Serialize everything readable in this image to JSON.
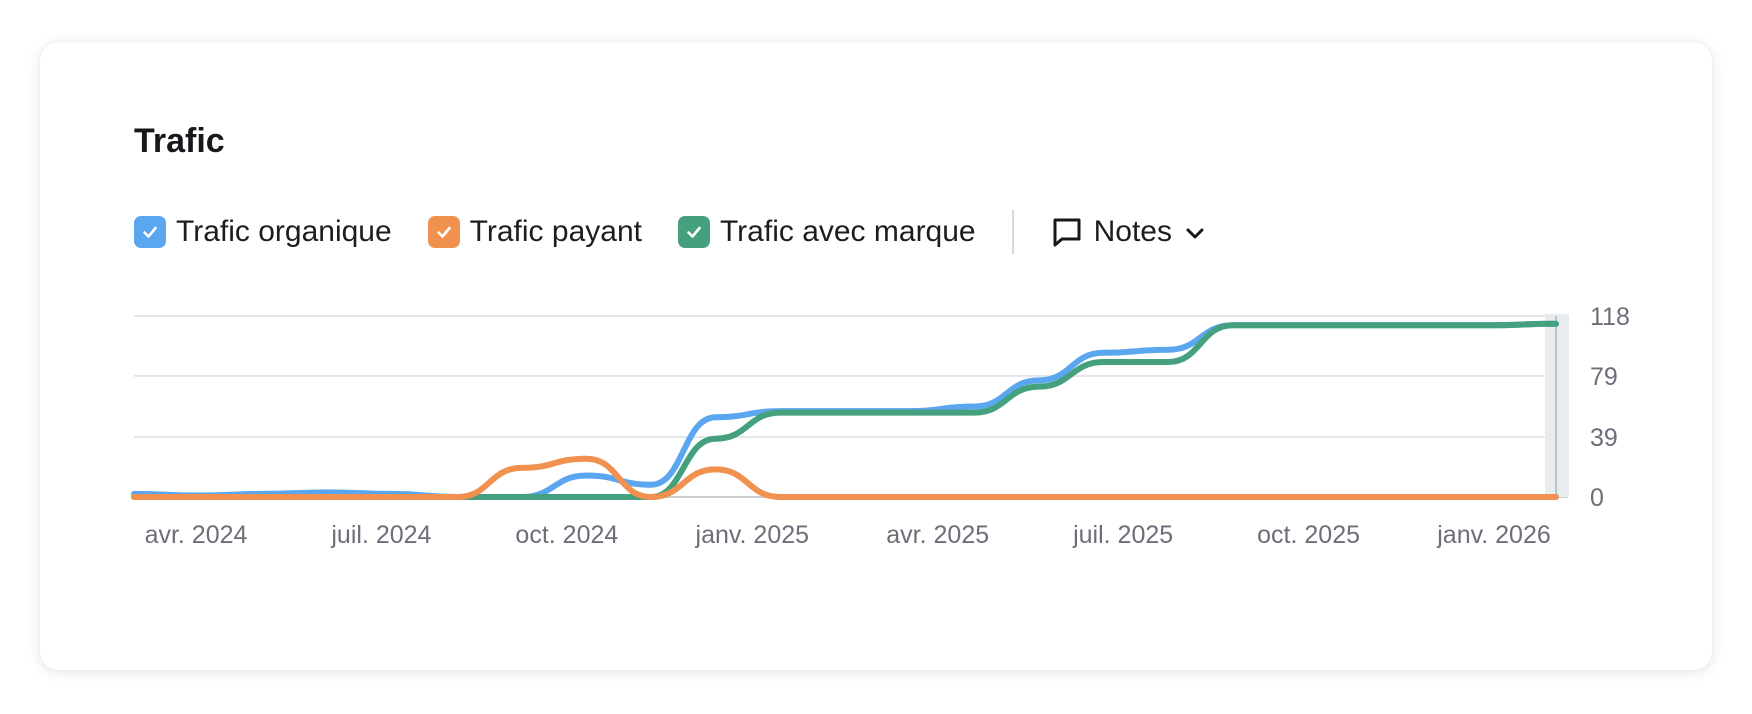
{
  "card": {
    "title": "Trafic"
  },
  "legend": {
    "items": [
      {
        "label": "Trafic organique",
        "color": "#5aa7f0",
        "checked": true
      },
      {
        "label": "Trafic payant",
        "color": "#f0914f",
        "checked": true
      },
      {
        "label": "Trafic avec marque",
        "color": "#45a07d",
        "checked": true
      }
    ],
    "notes_label": "Notes"
  },
  "chart_data": {
    "type": "line",
    "title": "Trafic",
    "x_tick_labels": [
      "avr. 2024",
      "juil. 2024",
      "oct. 2024",
      "janv. 2025",
      "avr. 2025",
      "juil. 2025",
      "oct. 2025",
      "janv. 2026"
    ],
    "y_ticks": [
      0,
      39,
      79,
      118
    ],
    "y_axis_position": "right",
    "ylim": [
      0,
      118
    ],
    "grid": true,
    "x": [
      "2024-03",
      "2024-04",
      "2024-05",
      "2024-06",
      "2024-07",
      "2024-08",
      "2024-09",
      "2024-10",
      "2024-11",
      "2024-12",
      "2025-01",
      "2025-02",
      "2025-03",
      "2025-04",
      "2025-05",
      "2025-06",
      "2025-07",
      "2025-08",
      "2025-09",
      "2025-10",
      "2025-11",
      "2025-12",
      "2026-01"
    ],
    "series": [
      {
        "name": "Trafic organique",
        "color": "#5aa7f0",
        "values": [
          2,
          1,
          2,
          3,
          2,
          0,
          0,
          14,
          8,
          52,
          56,
          56,
          56,
          59,
          76,
          94,
          96,
          112,
          112,
          112,
          112,
          112,
          113
        ]
      },
      {
        "name": "Trafic payant",
        "color": "#f0914f",
        "values": [
          0,
          0,
          0,
          0,
          0,
          0,
          19,
          25,
          0,
          18,
          0,
          0,
          0,
          0,
          0,
          0,
          0,
          0,
          0,
          0,
          0,
          0,
          0
        ]
      },
      {
        "name": "Trafic avec marque",
        "color": "#45a07d",
        "values": [
          0,
          0,
          0,
          0,
          0,
          0,
          0,
          0,
          0,
          38,
          55,
          55,
          55,
          55,
          72,
          88,
          88,
          112,
          112,
          112,
          112,
          112,
          113
        ]
      }
    ]
  }
}
